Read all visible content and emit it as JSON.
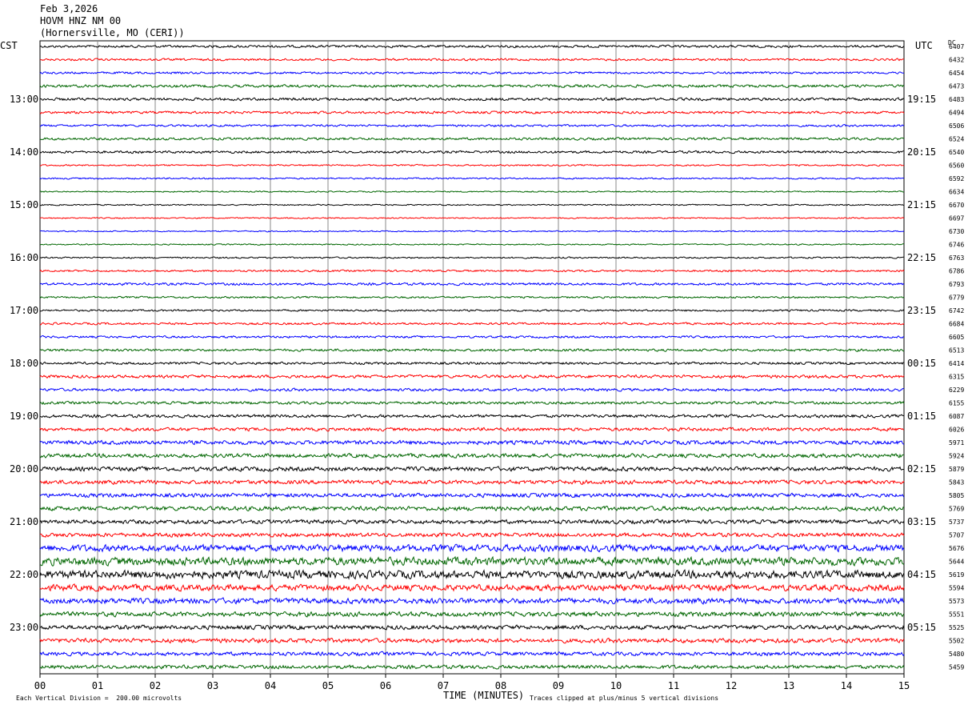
{
  "header": {
    "date": "Feb 3,2026",
    "station": "HOVM HNZ NM 00",
    "location": "(Hornersville, MO (CERI))"
  },
  "chart_data": {
    "type": "line",
    "title": "",
    "xlabel": "TIME (MINUTES)",
    "left_axis_label": "CST",
    "right_axis_label": "UTC",
    "dc_column_label": "DC",
    "x_ticks": [
      "00",
      "01",
      "02",
      "03",
      "04",
      "05",
      "06",
      "07",
      "08",
      "09",
      "10",
      "11",
      "12",
      "13",
      "14",
      "15"
    ],
    "xlim": [
      0,
      15
    ],
    "left_hour_labels": [
      "13:00",
      "14:00",
      "15:00",
      "16:00",
      "17:00",
      "18:00",
      "19:00",
      "20:00",
      "21:00",
      "22:00",
      "23:00"
    ],
    "right_hour_labels": [
      "19:15",
      "20:15",
      "21:15",
      "22:15",
      "23:15",
      "00:15",
      "01:15",
      "02:15",
      "03:15",
      "04:15",
      "05:15"
    ],
    "trace_colors": [
      "#000000",
      "#ff0000",
      "#0000ff",
      "#006600"
    ],
    "dc_offsets": [
      6407,
      6432,
      6454,
      6473,
      6483,
      6494,
      6506,
      6524,
      6540,
      6560,
      6592,
      6634,
      6670,
      6697,
      6730,
      6746,
      6763,
      6786,
      6793,
      6779,
      6742,
      6684,
      6605,
      6513,
      6414,
      6315,
      6229,
      6155,
      6087,
      6026,
      5971,
      5924,
      5879,
      5843,
      5805,
      5769,
      5737,
      5707,
      5676,
      5644,
      5619,
      5594,
      5573,
      5551,
      5525,
      5502,
      5480,
      5459
    ],
    "trace_noise_level": [
      0.8,
      0.7,
      0.7,
      0.9,
      0.9,
      0.8,
      0.7,
      0.8,
      0.8,
      0.5,
      0.5,
      0.4,
      0.4,
      0.4,
      0.4,
      0.4,
      0.5,
      0.6,
      0.8,
      0.6,
      0.6,
      0.7,
      0.7,
      0.8,
      0.8,
      1.0,
      0.9,
      0.9,
      1.0,
      1.1,
      1.3,
      1.3,
      1.4,
      1.3,
      1.3,
      1.4,
      1.3,
      1.3,
      2.2,
      2.6,
      2.6,
      2.0,
      1.8,
      1.5,
      1.4,
      1.4,
      1.2,
      1.2
    ],
    "scale_note": "Each Vertical Division =  200.00 microvolts",
    "clip_note": "Traces clipped at plus/minus 5 vertical divisions",
    "grid": true
  }
}
